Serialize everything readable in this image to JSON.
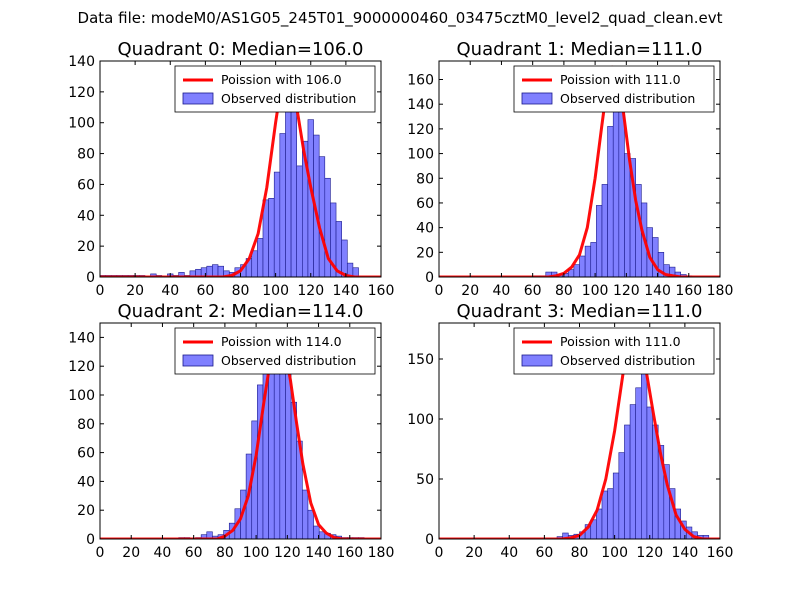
{
  "page": {
    "title": "Data file: modeM0/AS1G05_245T01_9000000460_03475cztM0_level2_quad_clean.evt"
  },
  "colors": {
    "bar_fill": "#8080ff",
    "bar_edge": "#1a1a8c",
    "curve": "#ff0000",
    "axis": "#000000"
  },
  "chart_data": [
    {
      "type": "bar",
      "title": "Quadrant 0: Median=106.0",
      "xlim": [
        0,
        160
      ],
      "ylim": [
        0,
        140
      ],
      "xticks": [
        0,
        20,
        40,
        60,
        80,
        100,
        120,
        140,
        160
      ],
      "yticks": [
        0,
        20,
        40,
        60,
        80,
        100,
        120,
        140
      ],
      "legend": {
        "position": "upper-right",
        "curve_label": "Poission with 106.0",
        "bars_label": "Observed distribution"
      },
      "bin_width": 3.2,
      "histogram": {
        "bin_starts": [
          0,
          3.2,
          6.4,
          9.6,
          12.8,
          16,
          19.2,
          22.4,
          25.6,
          28.8,
          32,
          35.2,
          38.4,
          41.6,
          44.8,
          48,
          51.2,
          54.4,
          57.6,
          60.8,
          64,
          67.2,
          70.4,
          73.6,
          76.8,
          80,
          83.2,
          86.4,
          89.6,
          92.8,
          96,
          99.2,
          102.4,
          105.6,
          108.8,
          112,
          115.2,
          118.4,
          121.6,
          124.8,
          128,
          131.2,
          134.4,
          137.6,
          140.8,
          144
        ],
        "counts": [
          1,
          1,
          1,
          1,
          1,
          1,
          1,
          1,
          0,
          2,
          1,
          0,
          2,
          1,
          3,
          1,
          4,
          5,
          6,
          7,
          8,
          7,
          4,
          3,
          6,
          8,
          12,
          17,
          25,
          50,
          51,
          68,
          93,
          118,
          127,
          72,
          88,
          102,
          92,
          78,
          64,
          48,
          36,
          24,
          9,
          6
        ]
      },
      "poisson": {
        "x": [
          70,
          75,
          80,
          85,
          90,
          95,
          100,
          104,
          106,
          108,
          112,
          116,
          120,
          125,
          130,
          135,
          140,
          145
        ],
        "y": [
          0,
          1,
          4,
          12,
          28,
          58,
          100,
          130,
          135,
          130,
          110,
          82,
          58,
          32,
          12,
          4,
          1,
          0
        ]
      }
    },
    {
      "type": "bar",
      "title": "Quadrant 1: Median=111.0",
      "xlim": [
        0,
        180
      ],
      "ylim": [
        0,
        175
      ],
      "xticks": [
        0,
        20,
        40,
        60,
        80,
        100,
        120,
        140,
        160,
        180
      ],
      "yticks": [
        0,
        20,
        40,
        60,
        80,
        100,
        120,
        140,
        160
      ],
      "legend": {
        "position": "upper-right",
        "curve_label": "Poission with 111.0",
        "bars_label": "Observed distribution"
      },
      "bin_width": 3.6,
      "histogram": {
        "bin_starts": [
          61.2,
          64.8,
          68.4,
          72,
          75.6,
          79.2,
          82.8,
          86.4,
          90,
          93.6,
          97.2,
          100.8,
          104.4,
          108,
          111.6,
          115.2,
          118.8,
          122.4,
          126,
          129.6,
          133.2,
          136.8,
          140.4,
          144,
          147.6,
          151.2,
          154.8,
          158.4
        ],
        "counts": [
          1,
          1,
          4,
          4,
          2,
          3,
          6,
          10,
          17,
          25,
          28,
          58,
          75,
          122,
          134,
          142,
          100,
          96,
          75,
          60,
          40,
          32,
          20,
          10,
          8,
          4,
          2,
          1
        ]
      },
      "poisson": {
        "x": [
          70,
          75,
          80,
          85,
          90,
          95,
          100,
          104,
          108,
          111,
          114,
          118,
          122,
          126,
          130,
          135,
          140,
          145,
          150,
          155
        ],
        "y": [
          0,
          1,
          3,
          8,
          18,
          40,
          80,
          120,
          158,
          170,
          162,
          135,
          95,
          62,
          38,
          16,
          6,
          2,
          1,
          0
        ]
      }
    },
    {
      "type": "bar",
      "title": "Quadrant 2: Median=114.0",
      "xlim": [
        0,
        180
      ],
      "ylim": [
        0,
        150
      ],
      "xticks": [
        0,
        20,
        40,
        60,
        80,
        100,
        120,
        140,
        160,
        180
      ],
      "yticks": [
        0,
        20,
        40,
        60,
        80,
        100,
        120,
        140
      ],
      "legend": {
        "position": "upper-right",
        "curve_label": "Poission with 114.0",
        "bars_label": "Observed distribution"
      },
      "bin_width": 3.6,
      "histogram": {
        "bin_starts": [
          50.4,
          54,
          57.6,
          61.2,
          64.8,
          68.4,
          72,
          75.6,
          79.2,
          82.8,
          86.4,
          90,
          93.6,
          97.2,
          100.8,
          104.4,
          108,
          111.6,
          115.2,
          118.8,
          122.4,
          126,
          129.6,
          133.2,
          136.8,
          140.4,
          144,
          147.6,
          151.2,
          154.8,
          158.4,
          162,
          165.6
        ],
        "counts": [
          1,
          1,
          0,
          1,
          3,
          5,
          2,
          3,
          6,
          11,
          21,
          34,
          59,
          82,
          107,
          128,
          121,
          143,
          126,
          122,
          95,
          68,
          34,
          20,
          9,
          5,
          4,
          3,
          2,
          1,
          1,
          1,
          1
        ]
      },
      "poisson": {
        "x": [
          70,
          75,
          80,
          85,
          90,
          95,
          100,
          105,
          110,
          114,
          118,
          122,
          126,
          130,
          135,
          140,
          145,
          150,
          155,
          160
        ],
        "y": [
          0,
          0,
          2,
          6,
          14,
          30,
          58,
          95,
          130,
          145,
          135,
          110,
          80,
          52,
          25,
          10,
          4,
          1,
          0,
          0
        ]
      }
    },
    {
      "type": "bar",
      "title": "Quadrant 3: Median=111.0",
      "xlim": [
        0,
        160
      ],
      "ylim": [
        0,
        180
      ],
      "xticks": [
        0,
        20,
        40,
        60,
        80,
        100,
        120,
        140,
        160
      ],
      "yticks": [
        0,
        50,
        100,
        150
      ],
      "legend": {
        "position": "upper-right",
        "curve_label": "Poission with 111.0",
        "bars_label": "Observed distribution"
      },
      "bin_width": 3.2,
      "histogram": {
        "bin_starts": [
          67.2,
          70.4,
          73.6,
          76.8,
          80,
          83.2,
          86.4,
          89.6,
          92.8,
          96,
          99.2,
          102.4,
          105.6,
          108.8,
          112,
          115.2,
          118.4,
          121.6,
          124.8,
          128,
          131.2,
          134.4,
          137.6,
          140.8,
          144,
          147.2,
          150.4
        ],
        "counts": [
          2,
          5,
          3,
          4,
          6,
          12,
          16,
          25,
          40,
          42,
          55,
          72,
          95,
          112,
          126,
          161,
          110,
          95,
          78,
          62,
          42,
          25,
          15,
          10,
          6,
          3,
          3
        ]
      },
      "poisson": {
        "x": [
          70,
          75,
          80,
          85,
          90,
          95,
          100,
          105,
          108,
          111,
          114,
          118,
          122,
          126,
          130,
          135,
          140,
          145,
          150
        ],
        "y": [
          0,
          1,
          3,
          10,
          24,
          50,
          90,
          140,
          162,
          170,
          162,
          140,
          105,
          72,
          45,
          20,
          8,
          2,
          0
        ]
      }
    }
  ]
}
